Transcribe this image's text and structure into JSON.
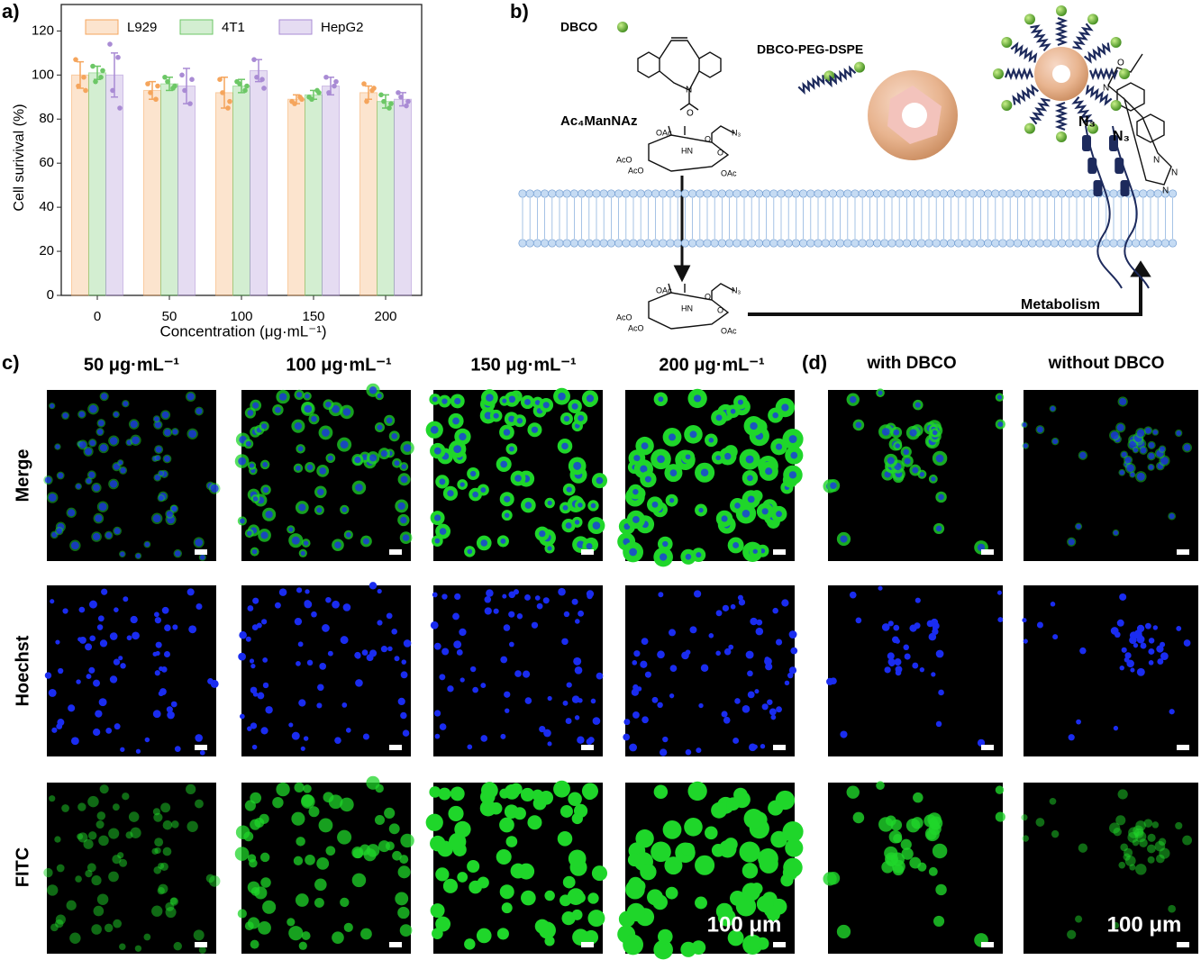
{
  "panels": {
    "a": "a)",
    "b": "b)",
    "c": "c)",
    "d": "(d)"
  },
  "chart_data": {
    "type": "bar",
    "ylabel": "Cell surivival (%)",
    "xlabel": "Concentration (μg·mL⁻¹)",
    "categories": [
      "0",
      "50",
      "100",
      "150",
      "200"
    ],
    "series": [
      {
        "name": "L929",
        "color": "#f5a55c",
        "values": [
          100,
          93,
          92,
          89,
          92
        ],
        "errors": [
          6,
          4,
          7,
          2,
          3
        ],
        "points": [
          [
            107,
            99,
            95,
            93
          ],
          [
            96,
            89,
            92,
            95
          ],
          [
            98,
            85,
            92,
            88
          ],
          [
            88,
            90,
            87,
            89
          ],
          [
            96,
            93,
            88,
            94
          ]
        ]
      },
      {
        "name": "4T1",
        "color": "#6cc766",
        "values": [
          101,
          96,
          95,
          91,
          88
        ],
        "errors": [
          3,
          3,
          3,
          2,
          3
        ],
        "points": [
          [
            104,
            99,
            97,
            102
          ],
          [
            99,
            94,
            97,
            95
          ],
          [
            97,
            93,
            96,
            95
          ],
          [
            90,
            93,
            89,
            92
          ],
          [
            91,
            85,
            88,
            87
          ]
        ]
      },
      {
        "name": "HepG2",
        "color": "#a98bd4",
        "values": [
          100,
          95,
          102,
          95,
          89
        ],
        "errors": [
          10,
          8,
          5,
          4,
          3
        ],
        "points": [
          [
            114,
            108,
            93,
            85
          ],
          [
            100,
            87,
            93,
            98
          ],
          [
            107,
            98,
            99,
            94
          ],
          [
            99,
            95,
            92,
            97
          ],
          [
            92,
            86,
            90,
            88
          ]
        ]
      }
    ],
    "ylim": [
      0,
      132
    ],
    "yticks": [
      0,
      20,
      40,
      60,
      80,
      100,
      120
    ],
    "legend": "upper center"
  },
  "diagram": {
    "dbco": "DBCO",
    "peg": "DBCO-PEG-DSPE",
    "ac4": "Ac₄ManNAz",
    "metabolism": "Metabolism",
    "n3": [
      "N₃",
      "N₃"
    ],
    "sugar_labels": [
      "OAc",
      "HN",
      "O",
      "N₃",
      "AcO",
      "AcO",
      "O",
      "OAc"
    ],
    "dbco_labels": [
      "N",
      "O"
    ],
    "click_labels": [
      "O",
      "N",
      "N",
      "N",
      "N"
    ]
  },
  "microscopy": {
    "columns": [
      "50 μg·mL⁻¹",
      "100 μg·mL⁻¹",
      "150 μg·mL⁻¹",
      "200 μg·mL⁻¹"
    ],
    "rows": [
      "Merge",
      "Hoechst",
      "FITC"
    ],
    "scale": "100 μm"
  },
  "dbco_panel": {
    "columns": [
      "with DBCO",
      "without DBCO"
    ]
  }
}
